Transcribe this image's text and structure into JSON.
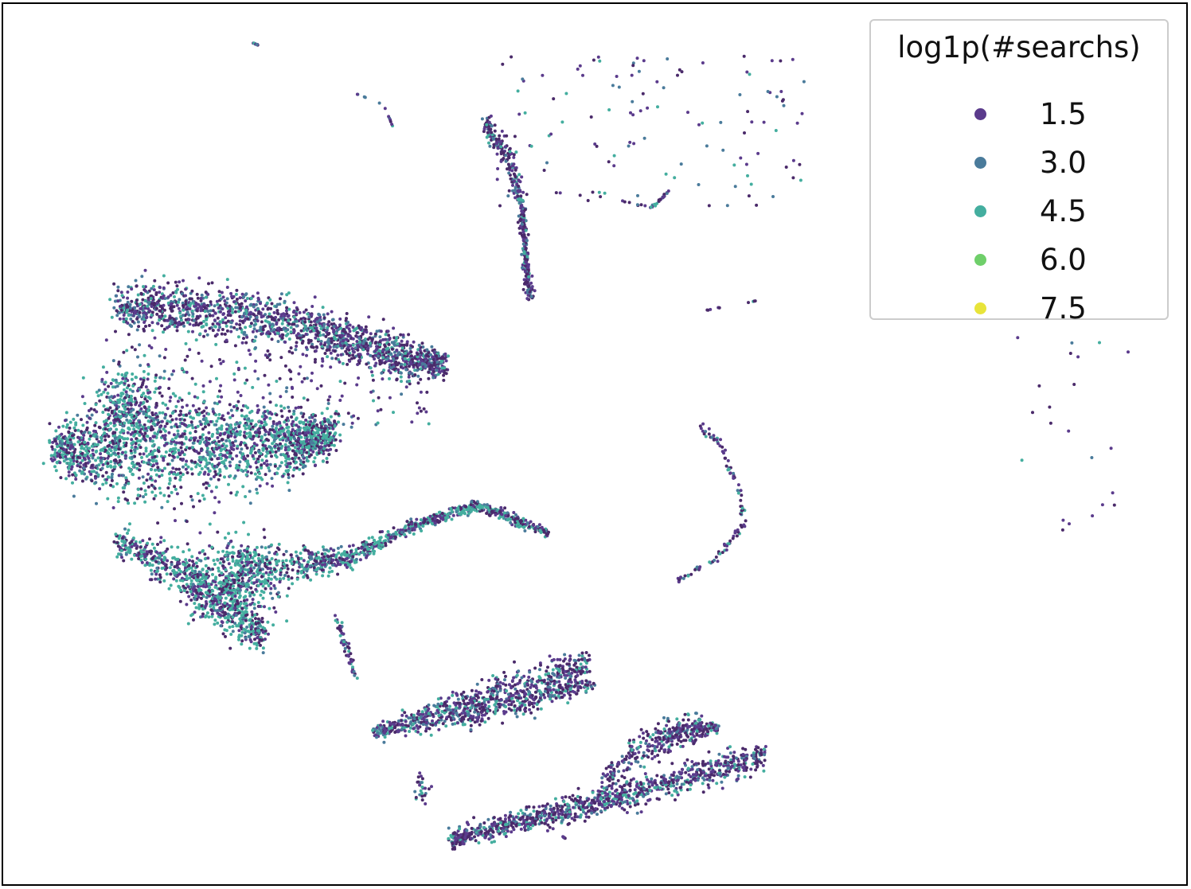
{
  "chart_data": {
    "type": "scatter",
    "title": "",
    "xlabel": "",
    "ylabel": "",
    "axes_visible": false,
    "grid": false,
    "legend": {
      "title": "log1p(#searchs)",
      "placement": "top-right",
      "entries": [
        {
          "label": "1.5",
          "value": 1.5,
          "color": "#5b3b8c"
        },
        {
          "label": "3.0",
          "value": 3.0,
          "color": "#4a7b9b"
        },
        {
          "label": "4.5",
          "value": 4.5,
          "color": "#44ae9f"
        },
        {
          "label": "6.0",
          "value": 6.0,
          "color": "#6fcf6a"
        },
        {
          "label": "7.5",
          "value": 7.5,
          "color": "#e8e43a"
        }
      ]
    },
    "colormap": "viridis",
    "marker_color": "#4a2a6a"
  }
}
